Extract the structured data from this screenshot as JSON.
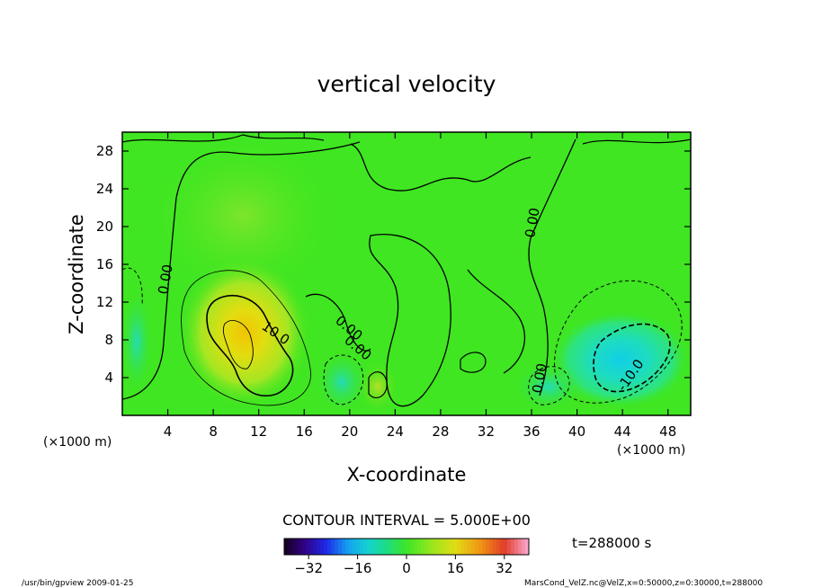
{
  "chart_data": {
    "type": "heatmap",
    "title": "vertical velocity",
    "xlabel": "X-coordinate",
    "ylabel": "Z-coordinate",
    "x_unit": "(×1000 m)",
    "y_unit": "(×1000 m)",
    "xlim": [
      0,
      50
    ],
    "ylim": [
      0,
      30
    ],
    "x_ticks": [
      4,
      8,
      12,
      16,
      20,
      24,
      28,
      32,
      36,
      40,
      44,
      48
    ],
    "y_ticks": [
      4,
      8,
      12,
      16,
      20,
      24,
      28
    ],
    "contour_interval_text": "CONTOUR INTERVAL = 5.000E+00",
    "contour_labels": [
      "0.00",
      "0.00",
      "0.00",
      "0.00",
      "0.00",
      "10.0",
      "-10.0"
    ],
    "time_label": "t=288000 s",
    "colorbar": {
      "ticks": [
        -32,
        -16,
        0,
        16,
        32
      ],
      "range": [
        -40,
        40
      ]
    },
    "features": [
      {
        "x": 10.0,
        "z": 8.5,
        "value": 16
      },
      {
        "x": 42.5,
        "z": 5.0,
        "value": -14
      },
      {
        "x": 19.5,
        "z": 3.0,
        "value": -9
      },
      {
        "x": 38.0,
        "z": 3.0,
        "value": -7
      }
    ],
    "colors": {
      "background_field": "#3fe621",
      "positive_peak": "#f0d000",
      "negative_peak": "#10d8d8"
    }
  },
  "footer": {
    "left": "/usr/bin/gpview  2009-01-25",
    "right": "MarsCond_VelZ.nc@VelZ,x=0:50000,z=0:30000,t=288000"
  }
}
